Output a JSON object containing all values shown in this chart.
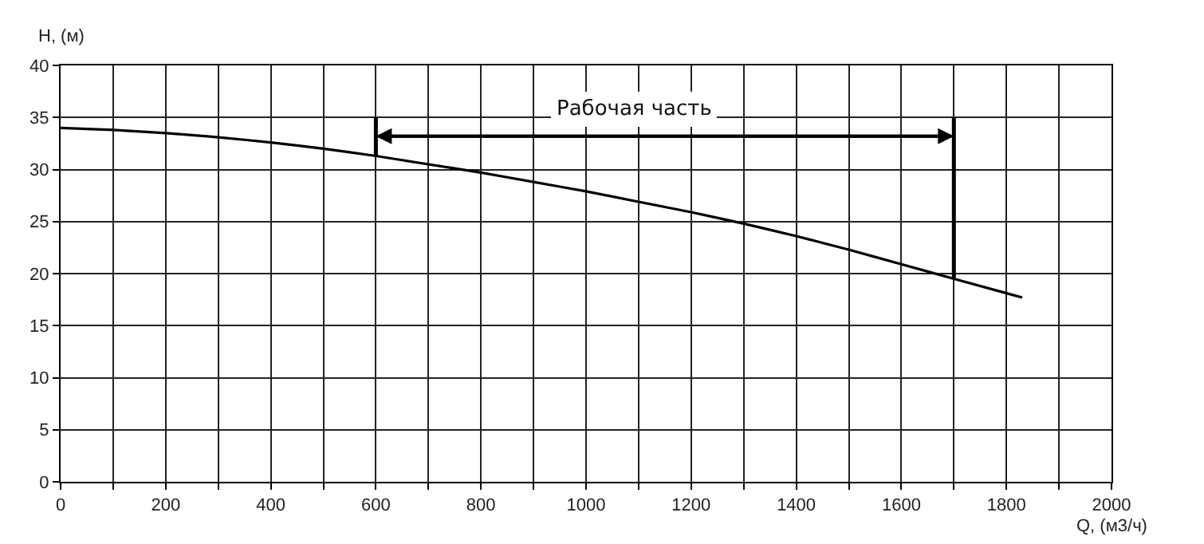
{
  "chart_data": {
    "type": "line",
    "xlabel": "Q, (м3/ч)",
    "ylabel": "H, (м)",
    "x": [
      0,
      100,
      200,
      300,
      400,
      500,
      600,
      700,
      800,
      900,
      1000,
      1100,
      1200,
      1300,
      1400,
      1500,
      1600,
      1700,
      1830
    ],
    "series": [
      {
        "color": "#000000",
        "values": [
          34.0,
          33.8,
          33.5,
          33.1,
          32.6,
          32.0,
          31.3,
          30.5,
          29.7,
          28.8,
          27.9,
          26.9,
          25.9,
          24.8,
          23.6,
          22.3,
          20.9,
          19.5,
          17.7
        ]
      }
    ],
    "xlim": [
      0,
      2000
    ],
    "ylim": [
      0,
      40
    ],
    "xticks": [
      0,
      {
        "value": 100,
        "label": null
      },
      200,
      {
        "value": 300,
        "label": null
      },
      400,
      {
        "value": 500,
        "label": null
      },
      600,
      {
        "value": 700,
        "label": null
      },
      800,
      {
        "value": 900,
        "label": null
      },
      1000,
      {
        "value": 1100,
        "label": null
      },
      1200,
      {
        "value": 1300,
        "label": null
      },
      1400,
      {
        "value": 1500,
        "label": null
      },
      1600,
      {
        "value": 1700,
        "label": null
      },
      1800,
      {
        "value": 1900,
        "label": null
      },
      2000
    ],
    "yticks": [
      0,
      5,
      10,
      15,
      20,
      25,
      30,
      35,
      40
    ],
    "ref_lines": [
      {
        "axis": "x",
        "value": 600,
        "color": "#000000"
      },
      {
        "axis": "x",
        "value": 1700,
        "color": "#000000"
      }
    ],
    "annotations": [
      "Рабочая часть"
    ],
    "grid": true,
    "marker": "none",
    "line_style": "solid"
  }
}
